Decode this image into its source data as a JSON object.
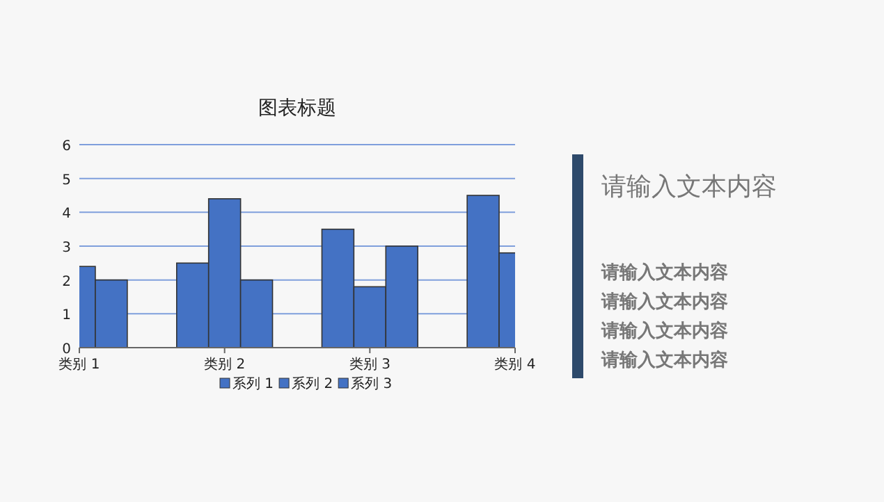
{
  "chart_data": [
    {
      "type": "bar",
      "title": "图表标题",
      "categories": [
        "类别 1",
        "类别 2",
        "类别 3",
        "类别 4"
      ],
      "series": [
        {
          "name": "系列 1",
          "color": "#4472c4",
          "values": [
            null,
            2.5,
            3.5,
            4.5
          ]
        },
        {
          "name": "系列 2",
          "color": "#4472c4",
          "values": [
            2.4,
            4.4,
            1.8,
            2.8
          ]
        },
        {
          "name": "系列 3",
          "color": "#4472c4",
          "values": [
            2,
            2,
            3,
            null
          ]
        }
      ],
      "ylim": [
        0,
        6
      ],
      "yticks": [
        0,
        1,
        2,
        3,
        4,
        5,
        6
      ],
      "grid": "y",
      "legend": "bottom"
    },
    {
      "type": "other",
      "title": "请输入文本内容",
      "annotations": [
        "请输入文本内容",
        "请输入文本内容",
        "请输入文本内容",
        "请输入文本内容"
      ]
    }
  ]
}
